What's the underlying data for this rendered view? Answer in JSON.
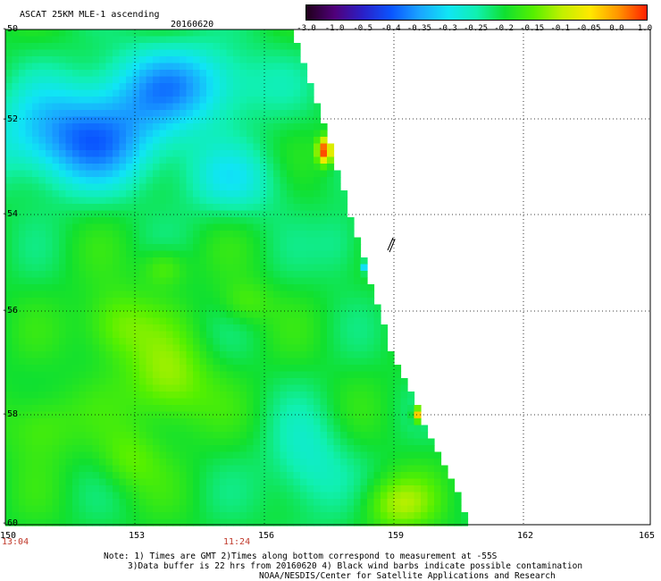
{
  "header": {
    "title": "ASCAT 25KM MLE-1 ascending",
    "date": "20160620"
  },
  "colorbar": {
    "labels": [
      "-3.0",
      "-1.0",
      "-0.5",
      "-0.4",
      "-0.35",
      "-0.3",
      "-0.25",
      "-0.2",
      "-0.15",
      "-0.1",
      "-0.05",
      "0.0",
      "1.0"
    ],
    "colors": [
      "#20001a",
      "#50007a",
      "#2a20c8",
      "#0a55ff",
      "#1aa5ff",
      "#10e5f5",
      "#10f0b0",
      "#10e030",
      "#55f000",
      "#c0f000",
      "#ffe800",
      "#ff9500",
      "#ff2000"
    ]
  },
  "axes": {
    "lat_labels": [
      "-50",
      "-52",
      "-54",
      "-56",
      "-58",
      "-60"
    ],
    "lon_labels": [
      "150",
      "153",
      "156",
      "159",
      "162",
      "165"
    ]
  },
  "times": {
    "left": "13:04",
    "middle": "11:24"
  },
  "notes": {
    "line1": "Note: 1) Times are GMT 2)Times along bottom correspond to measurement at -55S",
    "line2": "3)Data buffer is 22 hrs from 20160620 4) Black wind barbs indicate possible contamination",
    "line3": "NOAA/NESDIS/Center for Satellite Applications and Research"
  }
}
